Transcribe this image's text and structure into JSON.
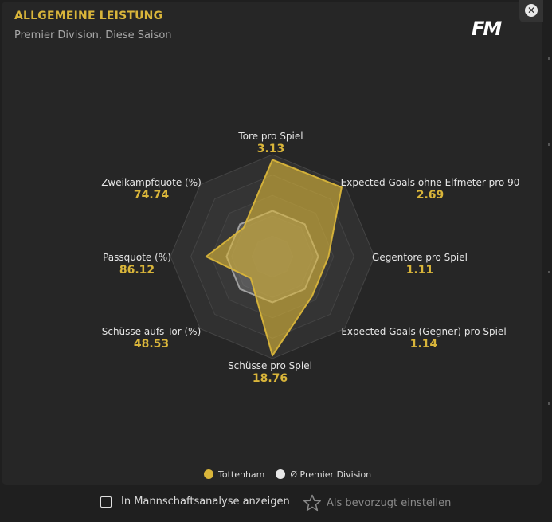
{
  "header": {
    "title": "ALLGEMEINE LEISTUNG",
    "subtitle": "Premier Division, Diese Saison",
    "logo": "FM",
    "close_icon": "close-icon"
  },
  "metrics": [
    {
      "label": "Tore pro Spiel",
      "value": "3.13"
    },
    {
      "label": "Expected Goals ohne Elfmeter pro 90",
      "value": "2.69"
    },
    {
      "label": "Gegentore pro Spiel",
      "value": "1.11"
    },
    {
      "label": "Expected Goals (Gegner) pro Spiel",
      "value": "1.14"
    },
    {
      "label": "Schüsse pro Spiel",
      "value": "18.76"
    },
    {
      "label": "Schüsse aufs Tor (%)",
      "value": "48.53"
    },
    {
      "label": "Passquote (%)",
      "value": "86.12"
    },
    {
      "label": "Zweikampfquote (%)",
      "value": "74.74"
    }
  ],
  "chart_data": {
    "type": "radar",
    "axes": [
      "Tore pro Spiel",
      "Expected Goals ohne Elfmeter pro 90",
      "Gegentore pro Spiel",
      "Expected Goals (Gegner) pro Spiel",
      "Schüsse pro Spiel",
      "Schüsse aufs Tor (%)",
      "Passquote (%)",
      "Zweikampfquote (%)"
    ],
    "series": [
      {
        "name": "Tottenham",
        "values": [
          0.95,
          0.96,
          0.55,
          0.55,
          0.97,
          0.3,
          0.65,
          0.4
        ],
        "color": "#d9b53a"
      },
      {
        "name": "Ø Premier Division",
        "values": [
          0.45,
          0.45,
          0.45,
          0.45,
          0.45,
          0.45,
          0.45,
          0.45
        ],
        "color": "#e8e8e8"
      }
    ],
    "scale": [
      0,
      1
    ],
    "grid_rings": 5
  },
  "legend": {
    "team": "Tottenham",
    "average": "Ø Premier Division",
    "team_color": "#d9b53a",
    "average_color": "#e8e8e8"
  },
  "footer": {
    "checkbox_label": "In Mannschaftsanalyse anzeigen",
    "favorite_label": "Als bevorzugt einstellen",
    "favorite_icon": "star-icon"
  }
}
